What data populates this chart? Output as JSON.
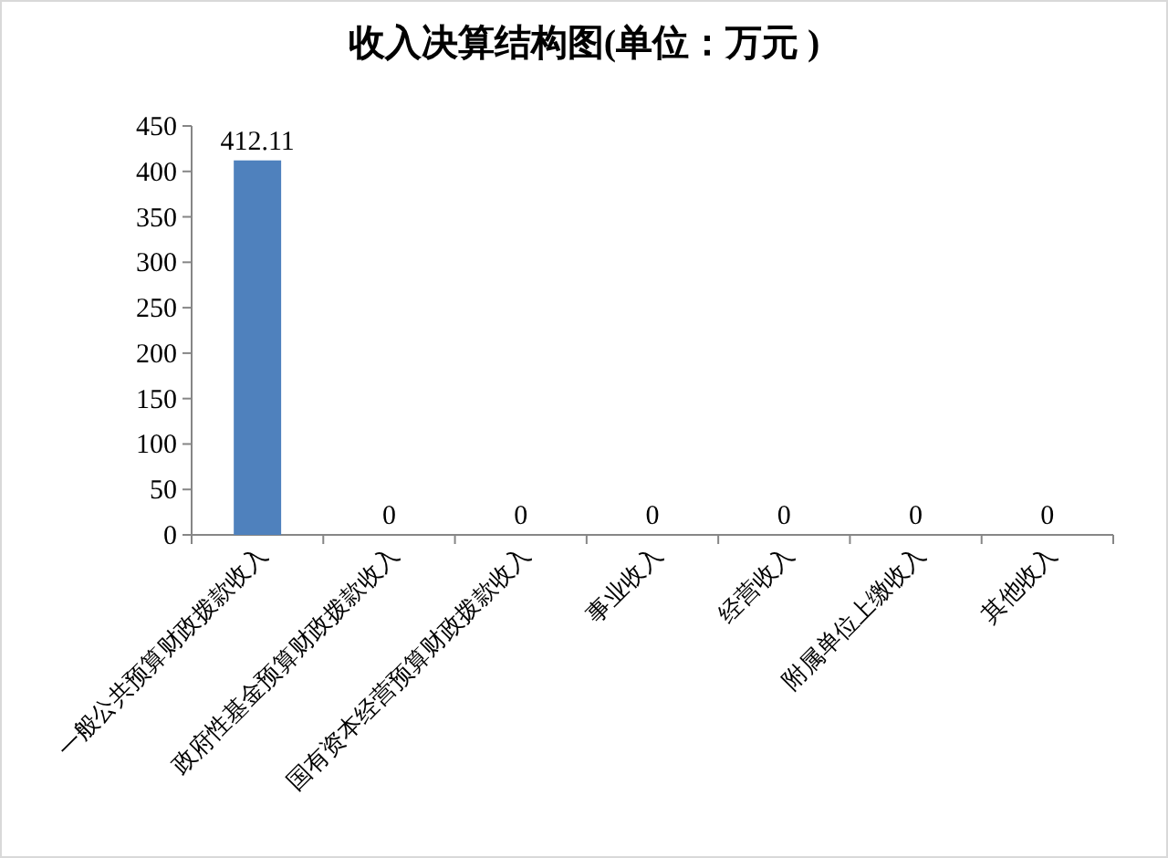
{
  "chart_data": {
    "type": "bar",
    "title": "收入决算结构图(单位：万元 )",
    "categories": [
      "一般公共预算财政拨款收入",
      "政府性基金预算财政拨款收入",
      "国有资本经营预算财政拨款收入",
      "事业收入",
      "经营收入",
      "附属单位上缴收入",
      "其他收入"
    ],
    "values": [
      412.11,
      0,
      0,
      0,
      0,
      0,
      0
    ],
    "color": "#4f81bd",
    "ylim": [
      0,
      450
    ],
    "yticks": [
      0,
      50,
      100,
      150,
      200,
      250,
      300,
      350,
      400,
      450
    ],
    "data_labels": true,
    "grid": false
  }
}
